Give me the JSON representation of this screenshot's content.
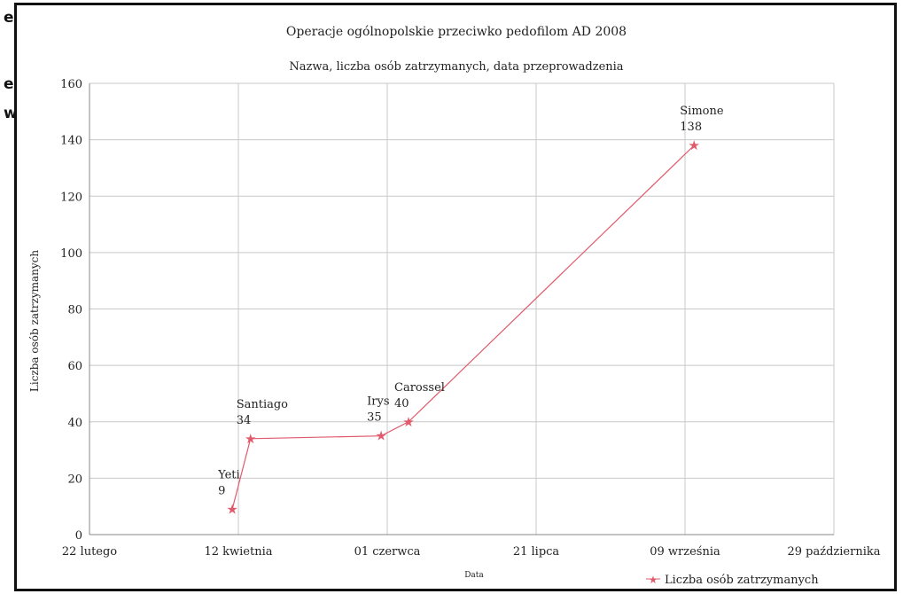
{
  "edge_fragments": [
    "e",
    "e",
    "w"
  ],
  "chart_data": {
    "type": "line",
    "title": "Operacje ogólnopolskie przeciwko pedofilom AD 2008",
    "subtitle": "Nazwa, liczba osób zatrzymanych, data przeprowadzenia",
    "xlabel": "Data",
    "ylabel": "Liczba osób zatrzymanych",
    "x_tick_labels": [
      "22 lutego",
      "12 kwietnia",
      "01 czerwca",
      "21 lipca",
      "09 września",
      "29 października"
    ],
    "ylim": [
      0,
      160
    ],
    "y_ticks": [
      0,
      20,
      40,
      60,
      80,
      100,
      120,
      140,
      160
    ],
    "grid": true,
    "legend_position": "bottom-right",
    "series": [
      {
        "name": "Liczba osób zatrzymanych",
        "color": "#e05a6b",
        "marker": "star",
        "points": [
          {
            "date": "2008-04-09",
            "value": 9,
            "label": "Yeti",
            "value_label": "9"
          },
          {
            "date": "2008-04-15",
            "value": 34,
            "label": "Santiago",
            "value_label": "34"
          },
          {
            "date": "2008-05-28",
            "value": 35,
            "label": "Irys",
            "value_label": "35"
          },
          {
            "date": "2008-06-06",
            "value": 40,
            "label": "Carossel",
            "value_label": "40"
          },
          {
            "date": "2008-09-08",
            "value": 138,
            "label": "Simone",
            "value_label": "138"
          }
        ]
      }
    ]
  }
}
